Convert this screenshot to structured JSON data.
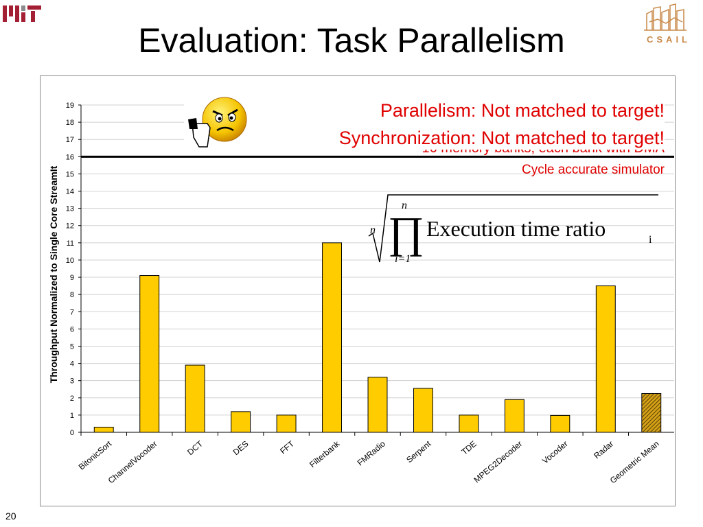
{
  "title": "Evaluation: Task Parallelism",
  "page_number": "20",
  "logos": {
    "left": "MIT",
    "right": "CSAIL"
  },
  "annotations": {
    "line1": "Parallelism: Not matched to target!",
    "line2": "Synchronization: Not matched to target!",
    "line3_partial": "16 memory banks, each bank with DMA",
    "line4": "Cycle accurate simulator"
  },
  "formula": {
    "root_index": "n",
    "upper": "n",
    "lower": "i=1",
    "body": "Execution time ratio",
    "subscript": "i"
  },
  "colors": {
    "bar": "#ffcc00",
    "bar_stroke": "#000000",
    "annotation": "#e00000",
    "target_line": "#000000"
  },
  "chart_data": {
    "type": "bar",
    "categories": [
      "BitonicSort",
      "ChannelVocoder",
      "DCT",
      "DES",
      "FFT",
      "Filterbank",
      "FMRadio",
      "Serpent",
      "TDE",
      "MPEG2Decoder",
      "Vocoder",
      "Radar",
      "Geometric Mean"
    ],
    "values": [
      0.3,
      9.1,
      3.9,
      1.2,
      1.0,
      11.0,
      3.2,
      2.55,
      1.0,
      1.9,
      0.98,
      8.5,
      2.25
    ],
    "highlight": "Geometric Mean",
    "title": "",
    "xlabel": "",
    "ylabel": "Throughput Normalized to Single Core StreamIt",
    "ylim": [
      0,
      19
    ],
    "yticks": [
      "0",
      "1",
      "2",
      "3",
      "4",
      "5",
      "6",
      "7",
      "8",
      "9",
      "10",
      "11",
      "12",
      "13",
      "14",
      "15",
      "16",
      "17",
      "18",
      "19"
    ],
    "target_line": 16,
    "grid": true,
    "legend": "none"
  }
}
